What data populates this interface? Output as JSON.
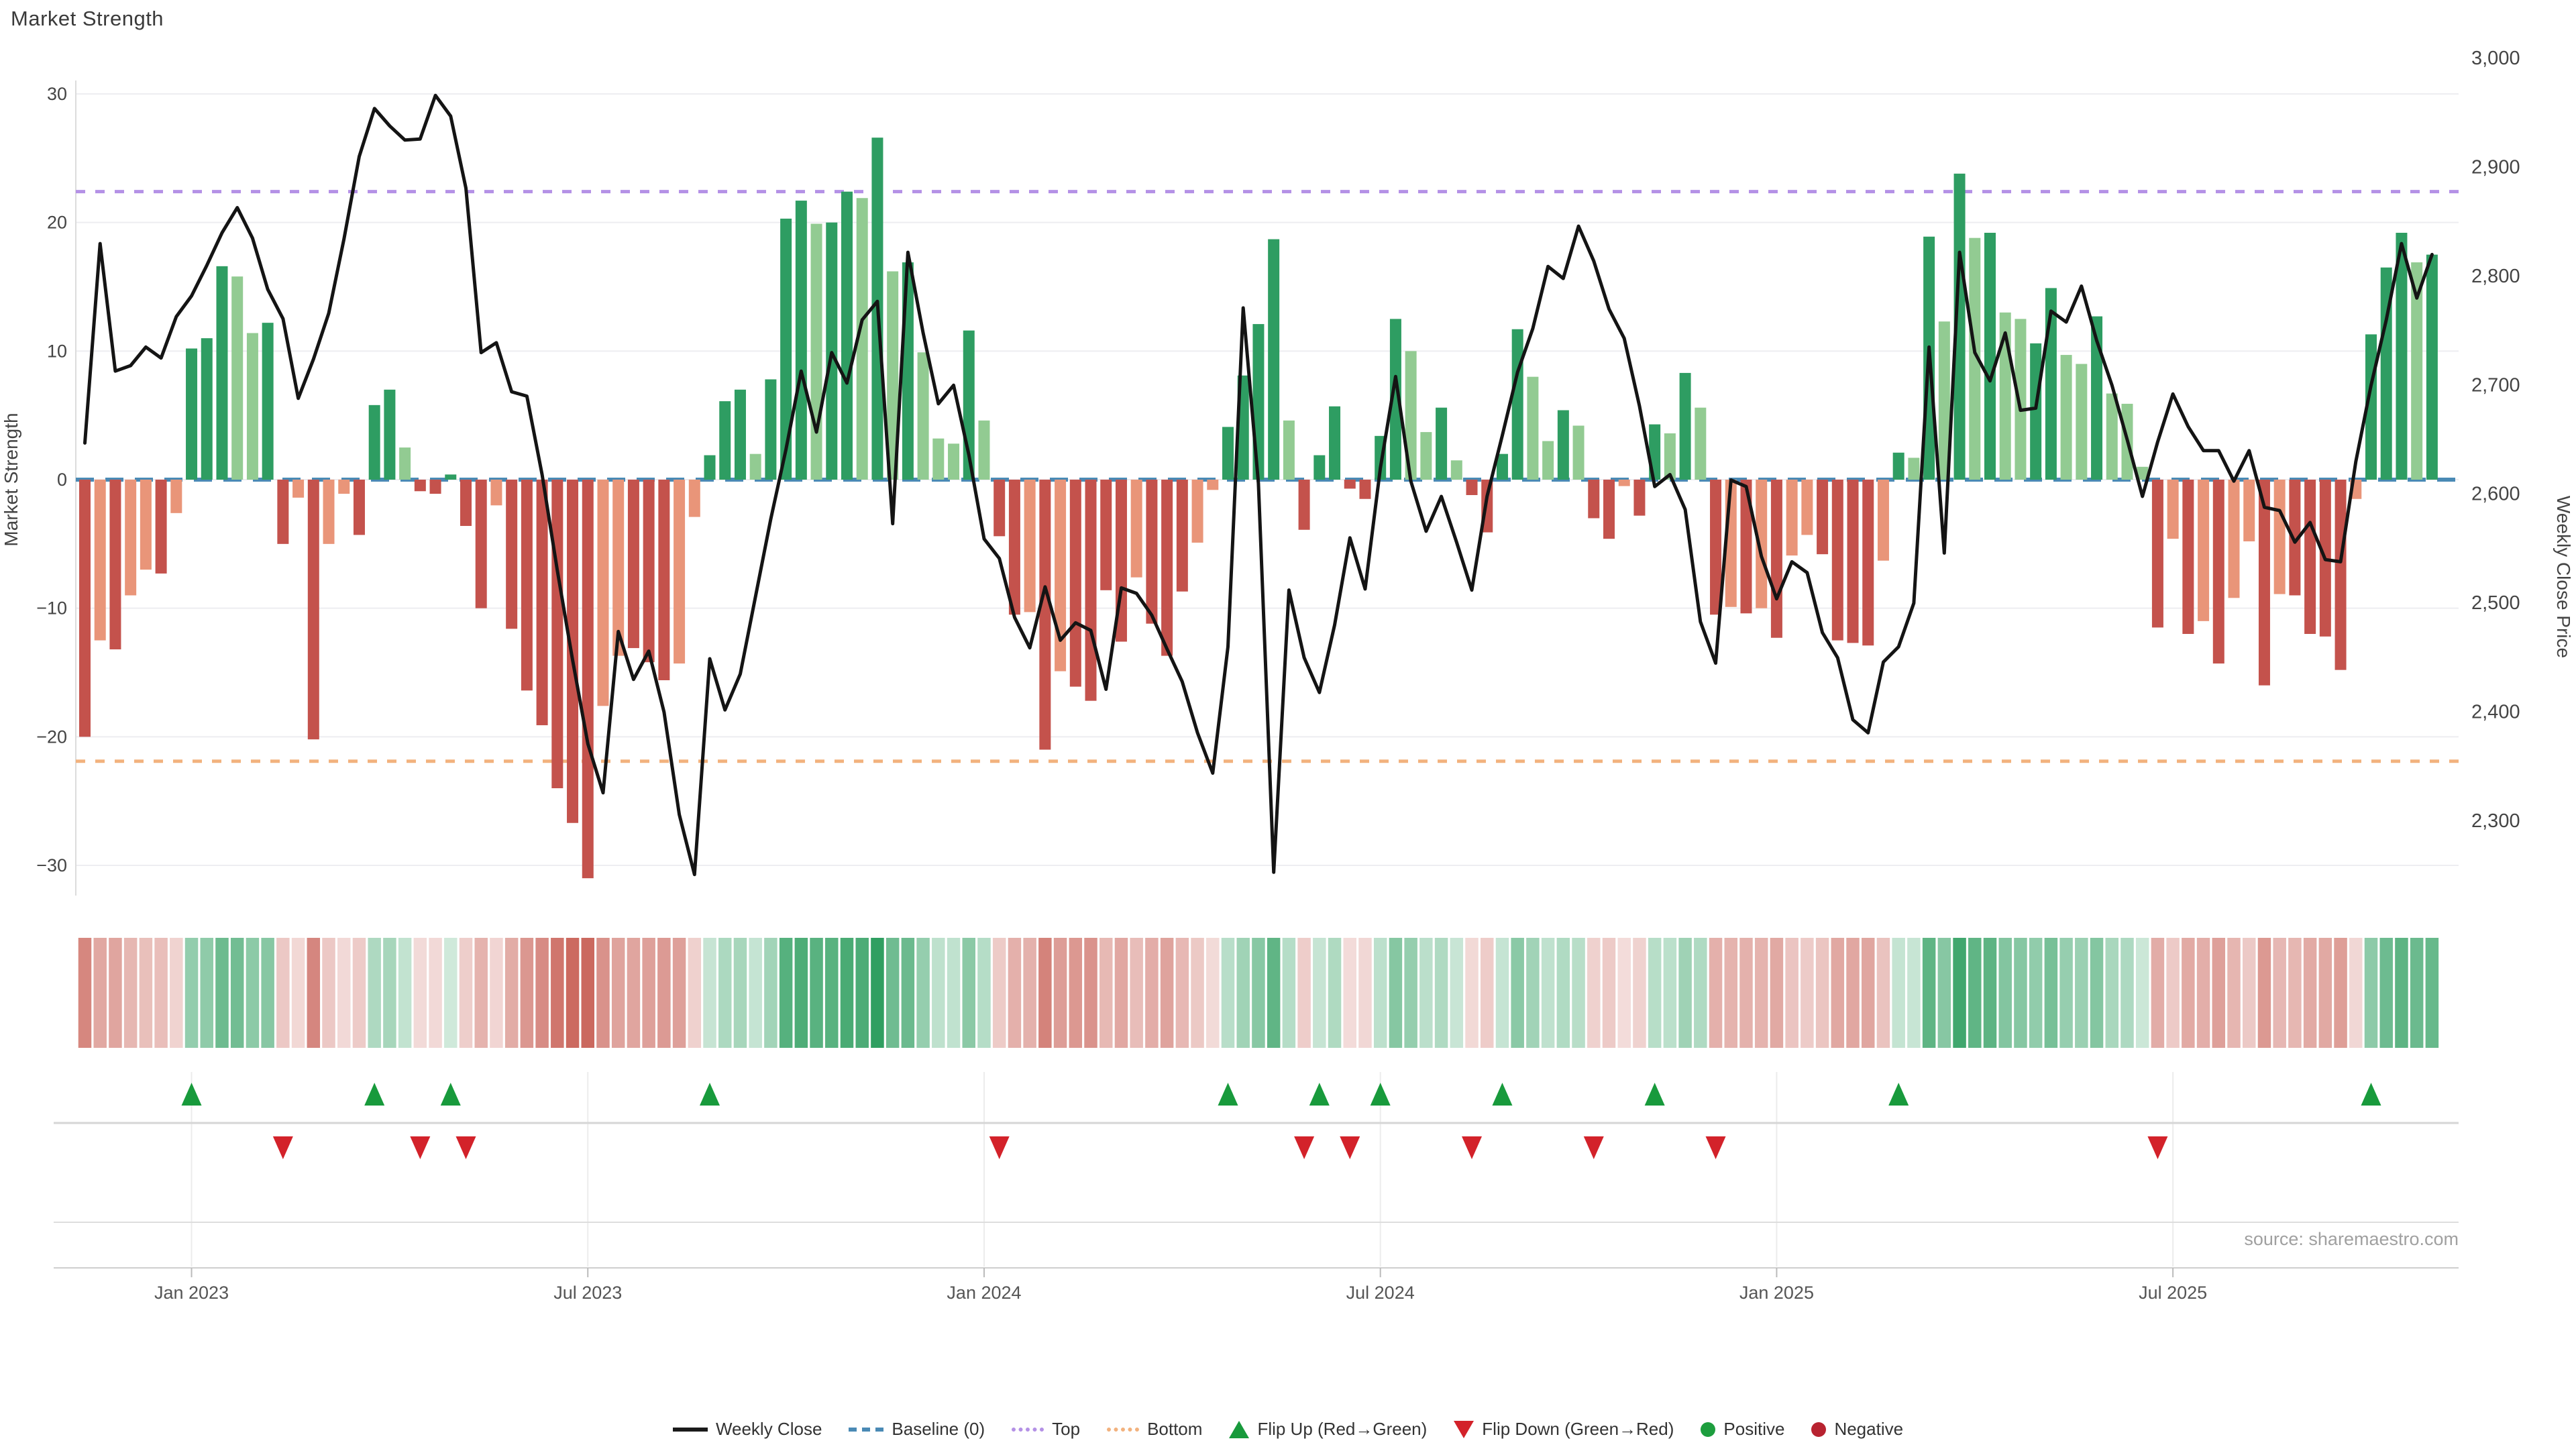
{
  "title": "Market Strength",
  "source": "source: sharemaestro.com",
  "colors": {
    "bar_positive_dark": "#2e9d62",
    "bar_positive_light": "#92cb92",
    "bar_negative_dark": "#c4524c",
    "bar_negative_light": "#e99579",
    "price_line": "#141414",
    "baseline": "#4a8ab5",
    "top_line": "#b491e6",
    "bottom_line": "#f2b27e",
    "flip_up": "#189a3c",
    "flip_down": "#d3222a",
    "positive_dot": "#1d9e3e",
    "negative_dot": "#b82330",
    "gridline": "#ededf1",
    "axis_line": "#cfcfcf",
    "tick_text": "#444444",
    "date_text": "#555555",
    "source_text": "#a0a0a0"
  },
  "legend": [
    {
      "label": "Weekly Close",
      "type": "line",
      "color": "#1a1a1a"
    },
    {
      "label": "Baseline (0)",
      "type": "dash",
      "color": "#4a8ab5"
    },
    {
      "label": "Top",
      "type": "dots",
      "color": "#b491e6"
    },
    {
      "label": "Bottom",
      "type": "dots",
      "color": "#f2b27e"
    },
    {
      "label": "Flip Up (Red→Green)",
      "type": "triangle-up",
      "color": "#189a3c"
    },
    {
      "label": "Flip Down (Green→Red)",
      "type": "triangle-down",
      "color": "#d3222a"
    },
    {
      "label": "Positive",
      "type": "circle",
      "color": "#1d9e3e"
    },
    {
      "label": "Negative",
      "type": "circle",
      "color": "#b82330"
    }
  ],
  "chart_data": {
    "type": "combo",
    "title": "Market Strength",
    "x_unit": "week",
    "weeks": 155,
    "x_ticks": [
      {
        "week": 7,
        "label": "Jan 2023"
      },
      {
        "week": 33,
        "label": "Jul 2023"
      },
      {
        "week": 59,
        "label": "Jan 2024"
      },
      {
        "week": 85,
        "label": "Jul 2024"
      },
      {
        "week": 111,
        "label": "Jan 2025"
      },
      {
        "week": 137,
        "label": "Jul 2025"
      }
    ],
    "left_axis": {
      "label": "Market Strength",
      "min": -30,
      "max": 30,
      "ticks": [
        "30",
        "20",
        "10",
        "0",
        "-10",
        "-20",
        "-30"
      ],
      "tick_values": [
        30,
        20,
        10,
        0,
        -10,
        -20,
        -30
      ]
    },
    "right_axis": {
      "label": "Weekly Close Price",
      "min": 2300,
      "max": 3000,
      "ticks": [
        "3,000",
        "2,900",
        "2,800",
        "2,700",
        "2,600",
        "2,500",
        "2,400",
        "2,300"
      ],
      "tick_values": [
        3000,
        2900,
        2800,
        2700,
        2600,
        2500,
        2400,
        2300
      ]
    },
    "reference_lines": {
      "baseline": 0,
      "top": 22.4,
      "bottom": -21.9
    },
    "series": [
      {
        "name": "Market Strength",
        "type": "bar",
        "axis": "left",
        "values": [
          -20,
          -12.5,
          -13.2,
          -9,
          -7,
          -7.3,
          -2.6,
          10.2,
          11,
          16.6,
          15.8,
          11.4,
          12.2,
          -5,
          -1.4,
          -20.2,
          -5,
          -1.1,
          -4.3,
          5.8,
          7,
          2.5,
          -0.9,
          -1.1,
          0.4,
          -3.6,
          -10,
          -2,
          -11.6,
          -16.4,
          -19.1,
          -24,
          -26.7,
          -31,
          -17.6,
          -13.7,
          -13.1,
          -14.2,
          -15.6,
          -14.3,
          -2.9,
          1.9,
          6.1,
          7,
          2,
          7.8,
          20.3,
          21.7,
          19.9,
          20,
          22.4,
          21.9,
          26.6,
          16.2,
          16.9,
          9.9,
          3.2,
          2.8,
          11.6,
          4.6,
          -4.4,
          -10.5,
          -10.3,
          -21,
          -14.9,
          -16.1,
          -17.2,
          -8.6,
          -12.6,
          -7.6,
          -11.2,
          -13.7,
          -8.7,
          -4.9,
          -0.8,
          4.1,
          8.1,
          12.1,
          18.7,
          4.6,
          -3.9,
          1.9,
          5.7,
          -0.7,
          -1.5,
          3.4,
          12.5,
          10,
          3.7,
          5.6,
          1.5,
          -1.2,
          -4.1,
          2,
          11.7,
          8,
          3,
          5.4,
          4.2,
          -3,
          -4.6,
          -0.5,
          -2.8,
          4.3,
          3.6,
          8.3,
          5.6,
          -10.5,
          -9.9,
          -10.4,
          -10,
          -12.3,
          -5.9,
          -4.3,
          -5.8,
          -12.5,
          -12.7,
          -12.9,
          -6.3,
          2.1,
          1.7,
          18.9,
          12.3,
          23.8,
          18.8,
          19.2,
          13,
          12.5,
          10.6,
          14.9,
          9.7,
          9,
          12.7,
          6.7,
          5.9,
          1,
          -11.5,
          -4.6,
          -12,
          -11,
          -14.3,
          -9.2,
          -4.8,
          -16,
          -8.9,
          -9,
          -12,
          -12.2,
          -14.8,
          -1.5,
          11.3,
          16.5,
          19.2,
          16.9,
          17.5
        ],
        "shades": [
          "d",
          "l",
          "d",
          "l",
          "l",
          "d",
          "l",
          "d",
          "d",
          "d",
          "l",
          "l",
          "d",
          "d",
          "l",
          "d",
          "l",
          "l",
          "d",
          "d",
          "d",
          "l",
          "d",
          "d",
          "d",
          "d",
          "d",
          "l",
          "d",
          "d",
          "d",
          "d",
          "d",
          "d",
          "l",
          "l",
          "d",
          "d",
          "d",
          "l",
          "l",
          "d",
          "d",
          "d",
          "l",
          "d",
          "d",
          "d",
          "l",
          "d",
          "d",
          "l",
          "d",
          "l",
          "d",
          "l",
          "l",
          "l",
          "d",
          "l",
          "d",
          "d",
          "l",
          "d",
          "l",
          "d",
          "d",
          "d",
          "d",
          "l",
          "d",
          "d",
          "d",
          "l",
          "l",
          "d",
          "d",
          "d",
          "d",
          "l",
          "d",
          "d",
          "d",
          "d",
          "d",
          "d",
          "d",
          "l",
          "l",
          "d",
          "l",
          "d",
          "d",
          "d",
          "d",
          "l",
          "l",
          "d",
          "l",
          "d",
          "d",
          "l",
          "d",
          "d",
          "l",
          "d",
          "l",
          "d",
          "l",
          "d",
          "l",
          "d",
          "l",
          "l",
          "d",
          "d",
          "d",
          "d",
          "l",
          "d",
          "l",
          "d",
          "l",
          "d",
          "l",
          "d",
          "l",
          "l",
          "d",
          "d",
          "l",
          "l",
          "d",
          "l",
          "l",
          "l",
          "d",
          "l",
          "d",
          "l",
          "d",
          "l",
          "l",
          "d",
          "l",
          "d",
          "d",
          "d",
          "d",
          "l",
          "d",
          "d",
          "d",
          "l",
          "d"
        ]
      },
      {
        "name": "Weekly Close",
        "type": "line",
        "axis": "right",
        "values": [
          2647,
          2830,
          2713,
          2718,
          2735,
          2725,
          2763,
          2782,
          2810,
          2840,
          2863,
          2835,
          2788,
          2761,
          2688,
          2724,
          2766,
          2834,
          2910,
          2954,
          2938,
          2925,
          2926,
          2966,
          2947,
          2881,
          2730,
          2739,
          2694,
          2690,
          2618,
          2530,
          2448,
          2371,
          2326,
          2474,
          2430,
          2456,
          2400,
          2306,
          2251,
          2449,
          2402,
          2435,
          2506,
          2577,
          2641,
          2713,
          2657,
          2730,
          2702,
          2760,
          2777,
          2573,
          2822,
          2748,
          2683,
          2700,
          2636,
          2559,
          2541,
          2487,
          2459,
          2515,
          2466,
          2482,
          2475,
          2421,
          2514,
          2509,
          2489,
          2458,
          2428,
          2381,
          2344,
          2460,
          2771,
          2610,
          2253,
          2512,
          2450,
          2418,
          2480,
          2560,
          2513,
          2624,
          2708,
          2612,
          2566,
          2598,
          2556,
          2512,
          2598,
          2654,
          2712,
          2752,
          2809,
          2798,
          2846,
          2814,
          2770,
          2743,
          2681,
          2607,
          2618,
          2586,
          2483,
          2445,
          2613,
          2607,
          2543,
          2504,
          2538,
          2528,
          2473,
          2450,
          2393,
          2381,
          2446,
          2460,
          2500,
          2735,
          2546,
          2822,
          2730,
          2704,
          2748,
          2677,
          2679,
          2768,
          2758,
          2791,
          2741,
          2700,
          2650,
          2598,
          2648,
          2692,
          2662,
          2640,
          2640,
          2612,
          2640,
          2588,
          2585,
          2556,
          2574,
          2540,
          2538,
          2630,
          2700,
          2760,
          2830,
          2780,
          2820
        ]
      }
    ],
    "flip_up_weeks": [
      7,
      19,
      24,
      41,
      75,
      81,
      85,
      93,
      103,
      119,
      150
    ],
    "flip_down_weeks": [
      13,
      22,
      25,
      60,
      80,
      83,
      91,
      99,
      107,
      136
    ],
    "heatmap": "derived from bar values (red-green intensity strip)",
    "grid": "horizontal only",
    "legend_position": "bottom"
  }
}
